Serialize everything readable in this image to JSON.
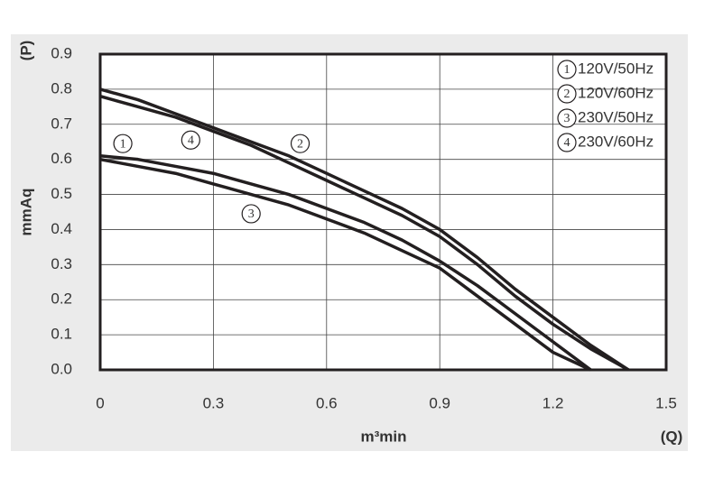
{
  "chart_data": {
    "type": "line",
    "y_label_top": "(P)",
    "y_label": "mmAq",
    "x_label": "m³min",
    "x_label_end": "(Q)",
    "x": [
      0,
      0.1,
      0.2,
      0.3,
      0.4,
      0.5,
      0.6,
      0.7,
      0.8,
      0.9,
      1.0,
      1.1,
      1.2,
      1.3,
      1.4
    ],
    "series": [
      {
        "label": "1",
        "name": "120V/50Hz",
        "color": "#231f20",
        "values": [
          0.61,
          0.6,
          0.58,
          0.56,
          0.53,
          0.5,
          0.46,
          0.42,
          0.37,
          0.31,
          0.24,
          0.16,
          0.08,
          0,
          null
        ]
      },
      {
        "label": "2",
        "name": "120V/60Hz",
        "color": "#231f20",
        "values": [
          0.8,
          0.77,
          0.73,
          0.69,
          0.65,
          0.61,
          0.56,
          0.51,
          0.46,
          0.4,
          0.32,
          0.23,
          0.15,
          0.07,
          0
        ]
      },
      {
        "label": "3",
        "name": "230V/50Hz",
        "color": "#231f20",
        "values": [
          0.6,
          0.58,
          0.56,
          0.53,
          0.5,
          0.47,
          0.43,
          0.39,
          0.34,
          0.29,
          0.21,
          0.13,
          0.05,
          0,
          null
        ]
      },
      {
        "label": "4",
        "name": "230V/60Hz",
        "color": "#231f20",
        "values": [
          0.78,
          0.75,
          0.72,
          0.68,
          0.64,
          0.59,
          0.54,
          0.49,
          0.44,
          0.38,
          0.3,
          0.21,
          0.13,
          0.06,
          0
        ]
      }
    ],
    "annotations": [
      {
        "text": "1",
        "x": 0.06,
        "y": 0.645
      },
      {
        "text": "4",
        "x": 0.24,
        "y": 0.655
      },
      {
        "text": "2",
        "x": 0.53,
        "y": 0.645
      },
      {
        "text": "3",
        "x": 0.4,
        "y": 0.445
      }
    ],
    "xlim": [
      0,
      1.5
    ],
    "xticks": [
      0,
      0.3,
      0.6,
      0.9,
      1.2,
      1.5
    ],
    "ylim": [
      0,
      0.9
    ],
    "yticks": [
      {
        "value": 0,
        "label": "0.0"
      },
      0.1,
      0.2,
      0.3,
      0.4,
      0.5,
      0.6,
      0.7,
      0.8,
      0.9
    ],
    "grid": true,
    "legend": "upper right"
  }
}
